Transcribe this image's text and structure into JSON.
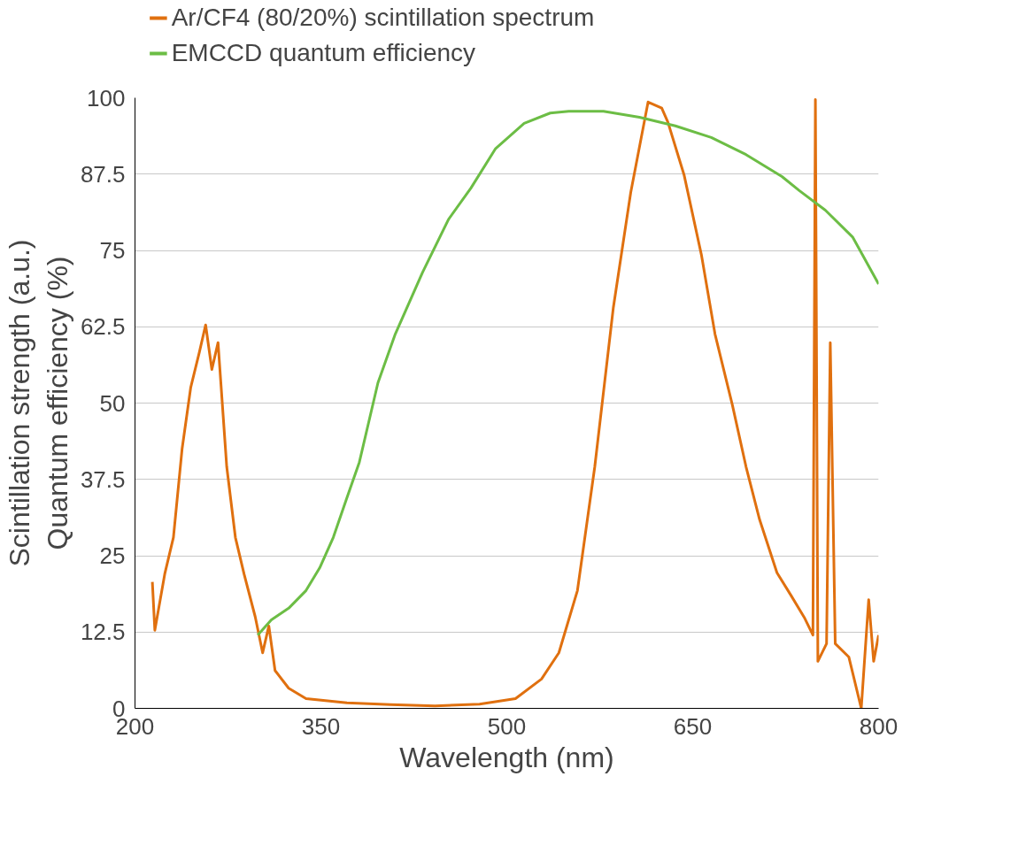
{
  "chart_data": {
    "type": "line",
    "xlabel": "Wavelength (nm)",
    "ylabel": "Scintillation strength (a.u.)\nQuantum efficiency (%)",
    "xlim": [
      200,
      800
    ],
    "xticks": [
      200,
      350,
      500,
      650,
      800
    ],
    "ylim": [
      0,
      100
    ],
    "yticks": [
      0,
      12.5,
      25,
      37.5,
      50,
      62.5,
      75,
      87.5,
      100
    ],
    "grid": "y",
    "legend": "top",
    "marker": "none",
    "line_style": "solid",
    "series": [
      {
        "name": "Ar/CF4 (80/20%) scintillation spectrum",
        "color": "#e0700f",
        "x": [
          214,
          216,
          224,
          231,
          238,
          245,
          252,
          257,
          262,
          267,
          274,
          281,
          288,
          297,
          303,
          308,
          313,
          324,
          338,
          371,
          406,
          442,
          478,
          507,
          528,
          542,
          557,
          571,
          586,
          600,
          614,
          625,
          630,
          643,
          657,
          668,
          682,
          693,
          704,
          718,
          729,
          740,
          747,
          749,
          751,
          758,
          761,
          765,
          776,
          786,
          792,
          796,
          800
        ],
        "values": [
          20.7,
          12.8,
          22,
          28,
          42.5,
          52.6,
          58.4,
          62.8,
          55.5,
          59.9,
          39.6,
          28,
          22,
          15,
          9.1,
          13.5,
          6.2,
          3.3,
          1.6,
          0.9,
          0.6,
          0.4,
          0.7,
          1.6,
          4.8,
          9.1,
          19.3,
          39.6,
          65.7,
          84.5,
          99.3,
          98.3,
          96,
          87.4,
          74.3,
          61.3,
          49.7,
          39.6,
          30.9,
          22.2,
          18.6,
          14.9,
          12,
          99.7,
          7.7,
          10.6,
          59.9,
          10.6,
          8.4,
          0,
          17.8,
          7.7,
          12
        ]
      },
      {
        "name": "EMCCD quantum efficiency",
        "color": "#6cbd45",
        "x": [
          299,
          310,
          324,
          338,
          349,
          360,
          371,
          381,
          396,
          410,
          432,
          453,
          471,
          491,
          514,
          535,
          550,
          578,
          607,
          636,
          665,
          693,
          722,
          736,
          757,
          779,
          800
        ],
        "values": [
          12,
          14.5,
          16.4,
          19.3,
          23,
          28,
          34.5,
          40.3,
          53.3,
          61.3,
          71.4,
          80.1,
          85.2,
          91.7,
          95.8,
          97.5,
          97.8,
          97.8,
          96.8,
          95.4,
          93.5,
          90.7,
          87.1,
          84.8,
          81.6,
          77.2,
          69.5
        ]
      }
    ]
  }
}
